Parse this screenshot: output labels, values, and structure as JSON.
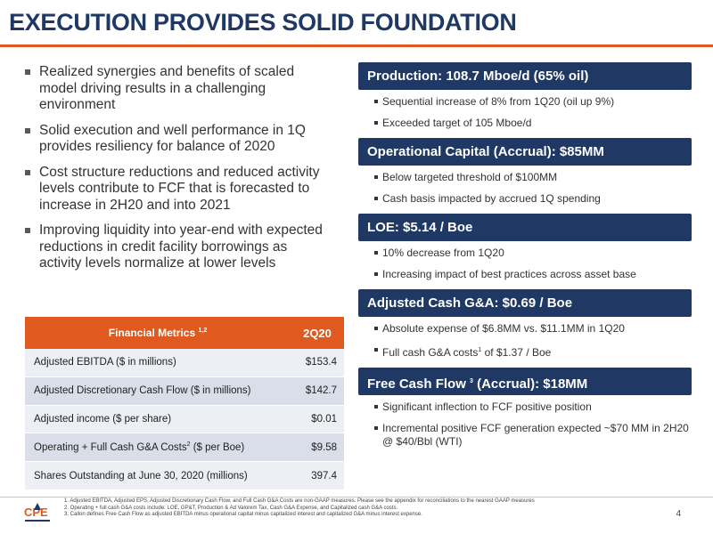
{
  "title": "EXECUTION PROVIDES SOLID FOUNDATION",
  "left_bullets": [
    "Realized synergies and benefits of scaled model driving results in a challenging environment",
    "Solid execution and well performance in 1Q provides resiliency for balance of 2020",
    "Cost structure reductions and reduced activity levels contribute to FCF that is forecasted to increase in 2H20 and into 2021",
    "Improving liquidity into year-end with expected reductions in credit facility borrowings as activity levels normalize at lower levels"
  ],
  "metrics": {
    "header_label": "Financial Metrics",
    "header_sup": "1,2",
    "header_period": "2Q20",
    "rows": [
      {
        "label": "Adjusted EBITDA ($ in millions)",
        "sup": "",
        "label_after": "",
        "value": "$153.4"
      },
      {
        "label": "Adjusted Discretionary Cash Flow ($ in millions)",
        "sup": "",
        "label_after": "",
        "value": "$142.7"
      },
      {
        "label": "Adjusted income ($ per share)",
        "sup": "",
        "label_after": "",
        "value": "$0.01"
      },
      {
        "label": "Operating + Full Cash G&A Costs",
        "sup": "2",
        "label_after": " ($ per Boe)",
        "value": "$9.58"
      },
      {
        "label": "Shares Outstanding at June 30, 2020 (millions)",
        "sup": "",
        "label_after": "",
        "value": "397.4"
      }
    ]
  },
  "sections": [
    {
      "heading": "Production: 108.7 Mboe/d (65% oil)",
      "heading_sup": "",
      "heading_after": "",
      "items": [
        {
          "text": "Sequential increase of 8% from 1Q20 (oil up 9%)",
          "sup": "",
          "after": ""
        },
        {
          "text": "Exceeded target of 105 Mboe/d",
          "sup": "",
          "after": ""
        }
      ]
    },
    {
      "heading": "Operational Capital (Accrual): $85MM",
      "heading_sup": "",
      "heading_after": "",
      "items": [
        {
          "text": "Below targeted threshold of $100MM",
          "sup": "",
          "after": ""
        },
        {
          "text": "Cash basis impacted by accrued 1Q spending",
          "sup": "",
          "after": ""
        }
      ]
    },
    {
      "heading": "LOE: $5.14 / Boe",
      "heading_sup": "",
      "heading_after": "",
      "items": [
        {
          "text": "10% decrease from 1Q20",
          "sup": "",
          "after": ""
        },
        {
          "text": "Increasing impact of best practices across asset base",
          "sup": "",
          "after": ""
        }
      ]
    },
    {
      "heading": "Adjusted Cash G&A: $0.69 / Boe",
      "heading_sup": "",
      "heading_after": "",
      "items": [
        {
          "text": "Absolute expense of $6.8MM vs. $11.1MM in 1Q20",
          "sup": "",
          "after": ""
        },
        {
          "text": "Full cash G&A costs",
          "sup": "1",
          "after": " of $1.37 / Boe"
        }
      ]
    },
    {
      "heading": "Free Cash Flow",
      "heading_sup": "3",
      "heading_after": " (Accrual): $18MM",
      "items": [
        {
          "text": "Significant inflection to FCF positive position",
          "sup": "",
          "after": ""
        },
        {
          "text": "Incremental positive FCF generation expected ~$70 MM in 2H20 @ $40/Bbl (WTI)",
          "sup": "",
          "after": ""
        }
      ]
    }
  ],
  "footnotes": [
    "1.  Adjusted EBITDA, Adjusted EPS, Adjusted Discretionary Cash Flow, and Full Cash G&A Costs are non-GAAP measures. Please see the appendix for reconciliations to the nearest GAAP measures",
    "2.  Operating + full cash G&A costs include: LOE, GP&T, Production & Ad Valorem Tax, Cash G&A Expense, and Capitalized cash G&A costs.",
    "3.  Callon defines Free Cash Flow as adjusted EBITDA minus operational capital minus capitalized interest and capitalized G&A minus interest expense."
  ],
  "logo_text": "CPE",
  "page_number": "4",
  "colors": {
    "navy": "#1f3864",
    "orange": "#e05a1f"
  }
}
